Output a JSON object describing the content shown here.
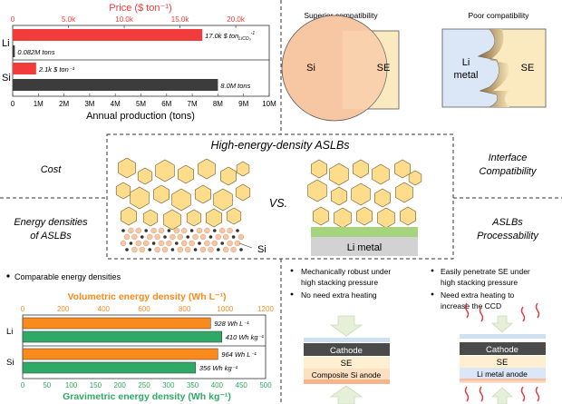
{
  "top_chart": {
    "top_axis_title": "Price ($ ton⁻¹)",
    "top_ticks": [
      "0",
      "5.0k",
      "10.0k",
      "15.0k",
      "20.0k"
    ],
    "bottom_axis_title": "Annual production (tons)",
    "bottom_ticks": [
      "0",
      "1M",
      "2M",
      "3M",
      "4M",
      "5M",
      "6M",
      "7M",
      "8M",
      "9M",
      "10M"
    ],
    "price_range": [
      0,
      23000
    ],
    "production_range": [
      0,
      10000000
    ],
    "rows": [
      {
        "category": "Li",
        "kind": "price",
        "value": 17000,
        "label": "17.0k $ ton",
        "label_sub": "LiCO₃",
        "label_sup": "-1"
      },
      {
        "category": "Li",
        "kind": "production",
        "value": 82000,
        "label": "0.082M tons"
      },
      {
        "category": "Si",
        "kind": "price",
        "value": 2100,
        "label": "2.1k $ ton⁻¹"
      },
      {
        "category": "Si",
        "kind": "production",
        "value": 8000000,
        "label": "8.0M tons"
      }
    ]
  },
  "compat": {
    "superior_title": "Superior compatibility",
    "poor_title": "Poor compatibility",
    "si": "Si",
    "se": "SE",
    "li_metal_line1": "Li",
    "li_metal_line2": "metal"
  },
  "center": {
    "title": "High-energy-density ASLBs",
    "vs": "VS.",
    "si_label": "Si",
    "li_metal": "Li metal"
  },
  "side_labels": {
    "cost": "Cost",
    "energy_line1": "Energy densities",
    "energy_line2": "of ASLBs",
    "interface_line1": "Interface",
    "interface_line2": "Compatibility",
    "process_line1": "ASLBs",
    "process_line2": "Processability"
  },
  "energy_chart": {
    "bullet": "Comparable energy densities",
    "top_axis_title": "Volumetric energy density (Wh L⁻¹)",
    "top_ticks": [
      "0",
      "200",
      "400",
      "600",
      "800",
      "1000",
      "1200"
    ],
    "top_range": [
      0,
      1200
    ],
    "bottom_axis_title": "Gravimetric energy density (Wh kg⁻¹)",
    "bottom_ticks": [
      "0",
      "50",
      "100",
      "150",
      "200",
      "250",
      "300",
      "350",
      "400",
      "450",
      "500"
    ],
    "bottom_range": [
      0,
      500
    ],
    "rows": [
      {
        "category": "Li",
        "kind": "volumetric",
        "value": 928,
        "label": "928 Wh L⁻¹"
      },
      {
        "category": "Li",
        "kind": "gravimetric",
        "value": 410,
        "label": "410 Wh kg⁻¹"
      },
      {
        "category": "Si",
        "kind": "volumetric",
        "value": 964,
        "label": "964 Wh L⁻¹"
      },
      {
        "category": "Si",
        "kind": "gravimetric",
        "value": 356,
        "label": "356 Wh kg⁻¹"
      }
    ]
  },
  "process": {
    "si_bullet1_line1": "Mechanically robust under",
    "si_bullet1_line2": "high stacking pressure",
    "si_bullet2": "No need extra heating",
    "li_bullet1_line1": "Easily penetrate SE under",
    "li_bullet1_line2": "high stacking pressure",
    "li_bullet2_line1": "Need  extra  heating  to",
    "li_bullet2_line2": "increase the CCD",
    "cathode": "Cathode",
    "se": "SE",
    "si_anode": "Composite Si anode",
    "li_anode": "Li metal anode"
  },
  "colors": {
    "price_red": "#f23b3b",
    "production_gray": "#3c3c3c",
    "volumetric_orange": "#fb8a1c",
    "gravimetric_green": "#2faa66",
    "particle_yellow": "#fddc8c",
    "si_salmon": "#f7c6a3",
    "li_blue": "#dbe6f7",
    "arrow_green": "#e6f0d8"
  }
}
